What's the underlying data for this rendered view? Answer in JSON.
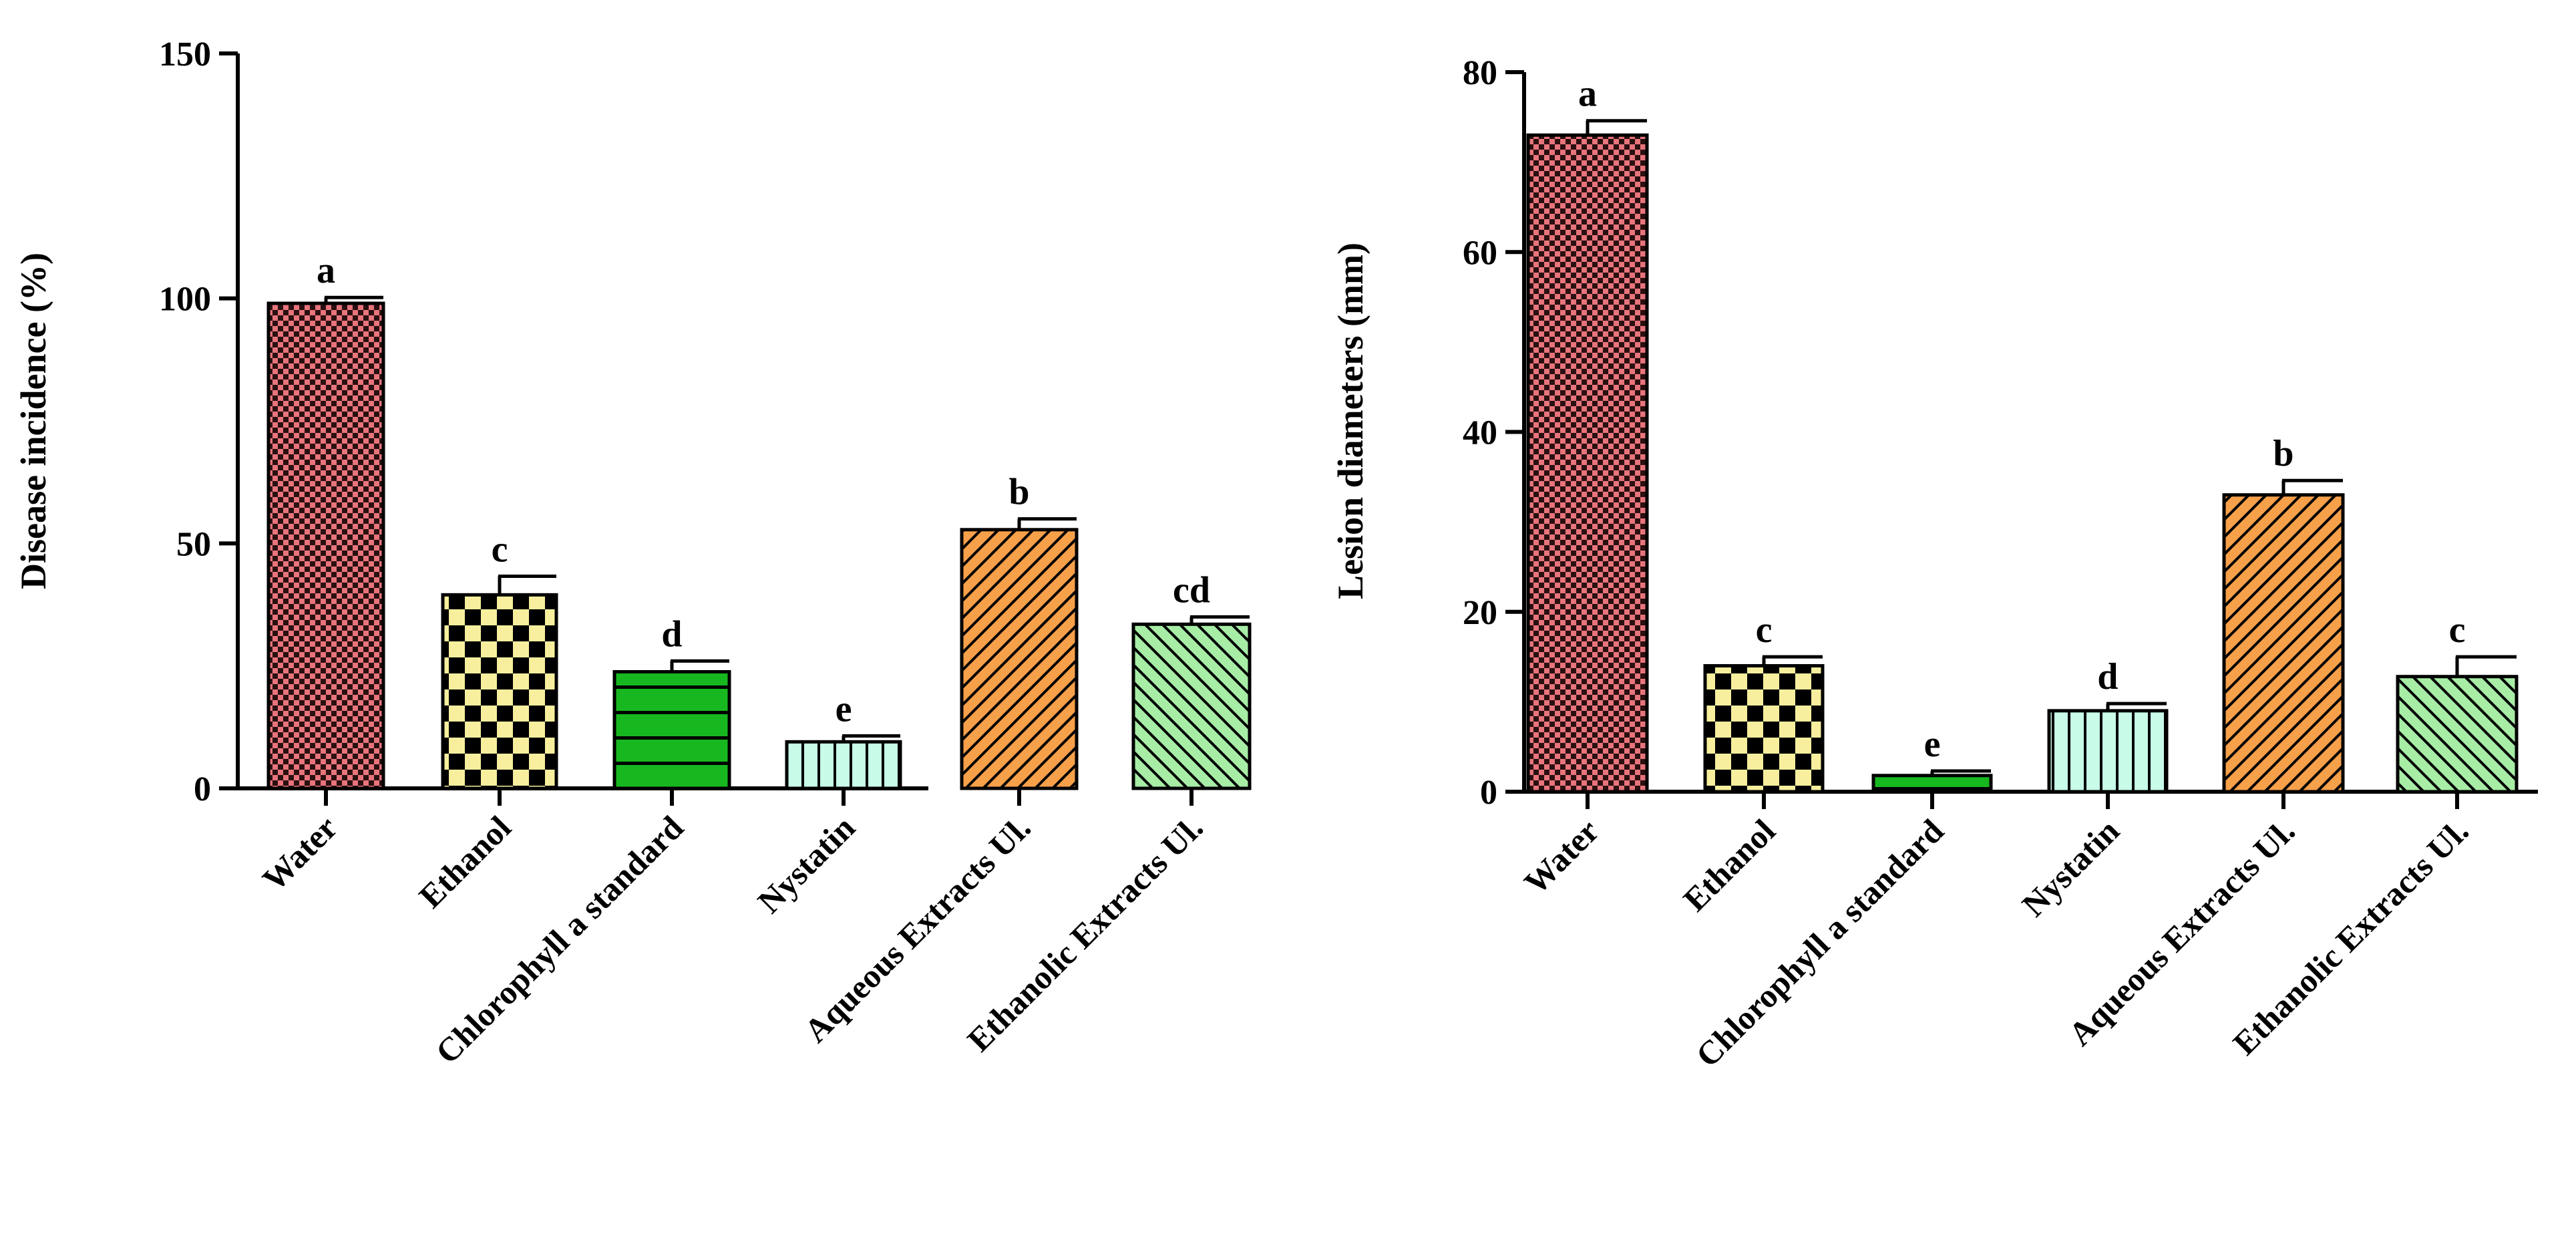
{
  "colors": {
    "water": "#e8747c",
    "ethanol": "#f7ef9d",
    "chlorophyll": "#17b81f",
    "nystatin": "#c8fbe8",
    "aqueous": "#f7a04a",
    "ethanolic": "#a7eda6"
  },
  "chart_data": [
    {
      "type": "bar",
      "ylabel": "Disease  incidence (%)",
      "xlabel": "",
      "ylim": [
        0,
        150
      ],
      "yticks": [
        "0",
        "50",
        "100",
        "150"
      ],
      "categories": [
        "Water",
        "Ethanol",
        "Chlorophyll a standard",
        "Nystatin",
        "Aqueous Extracts Ul.",
        "Ethanolic Extracts Ul."
      ],
      "values": [
        99,
        39.5,
        23.8,
        9.5,
        52.8,
        33.5
      ],
      "errors": [
        1.2,
        3.8,
        2.2,
        1.2,
        2.2,
        1.5
      ],
      "significance": [
        "a",
        "c",
        "d",
        "e",
        "b",
        "cd"
      ],
      "patterns": [
        "checker-fine",
        "checker-large",
        "h-stripes",
        "v-stripes",
        "diag-right",
        "diag-left"
      ],
      "color_keys": [
        "water",
        "ethanol",
        "chlorophyll",
        "nystatin",
        "aqueous",
        "ethanolic"
      ]
    },
    {
      "type": "bar",
      "ylabel": "Lesion diameters (mm)",
      "xlabel": "",
      "ylim": [
        0,
        80
      ],
      "yticks": [
        "0",
        "20",
        "40",
        "60",
        "80"
      ],
      "categories": [
        "Water",
        "Ethanol",
        "Chlorophyll a standard",
        "Nystatin",
        "Aqueous Extracts Ul.",
        "Ethanolic Extracts Ul."
      ],
      "values": [
        73,
        14,
        1.8,
        9,
        33,
        12.8
      ],
      "errors": [
        1.6,
        1,
        0.5,
        0.8,
        1.6,
        2.2
      ],
      "significance": [
        "a",
        "c",
        "e",
        "d",
        "b",
        "c"
      ],
      "patterns": [
        "checker-fine",
        "checker-large",
        "h-stripes",
        "v-stripes",
        "diag-right",
        "diag-left"
      ],
      "color_keys": [
        "water",
        "ethanol",
        "chlorophyll",
        "nystatin",
        "aqueous",
        "ethanolic"
      ]
    }
  ]
}
